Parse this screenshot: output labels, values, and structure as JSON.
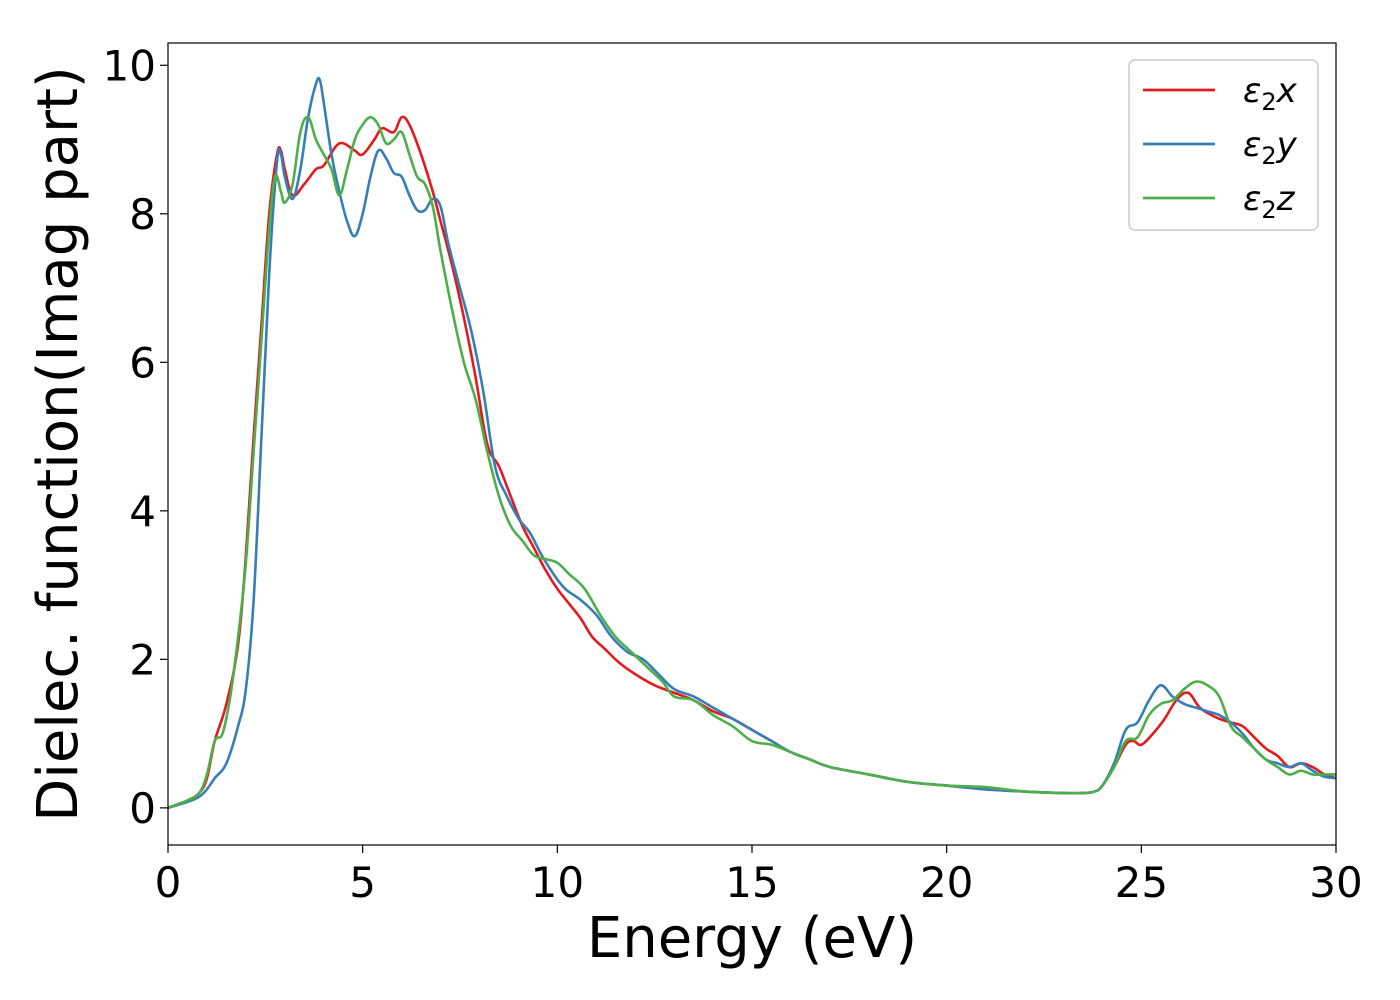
{
  "chart_data": {
    "type": "line",
    "title": "",
    "xlabel": "Energy (eV)",
    "ylabel": "Dielec. function(Imag part)",
    "xlim": [
      0,
      30
    ],
    "ylim": [
      -0.5,
      10.3
    ],
    "xticks": [
      0,
      5,
      10,
      15,
      20,
      25,
      30
    ],
    "yticks": [
      0,
      2,
      4,
      6,
      8,
      10
    ],
    "grid": false,
    "legend_position": "top-right",
    "series": [
      {
        "name": "ε2x",
        "legend_base": "ε",
        "legend_sub": "2",
        "legend_suffix": "x",
        "color": "#e41a1c",
        "x": [
          0,
          0.5,
          0.8,
          1.0,
          1.2,
          1.5,
          1.8,
          2.0,
          2.2,
          2.4,
          2.6,
          2.8,
          2.9,
          3.0,
          3.2,
          3.5,
          3.8,
          4.0,
          4.3,
          4.5,
          4.8,
          5.0,
          5.3,
          5.5,
          5.8,
          6.0,
          6.2,
          6.5,
          6.8,
          7.0,
          7.3,
          7.6,
          7.9,
          8.2,
          8.5,
          8.8,
          9.1,
          9.4,
          9.7,
          10.0,
          10.3,
          10.6,
          10.9,
          11.2,
          11.6,
          12.0,
          12.5,
          13.0,
          13.5,
          14.0,
          14.5,
          15.0,
          15.5,
          16.0,
          16.5,
          17.0,
          18.0,
          19.0,
          20.0,
          21.0,
          22.0,
          23.0,
          23.5,
          23.8,
          24.0,
          24.3,
          24.6,
          24.8,
          25.0,
          25.3,
          25.6,
          25.9,
          26.2,
          26.5,
          26.8,
          27.0,
          27.3,
          27.6,
          27.9,
          28.2,
          28.5,
          28.8,
          29.1,
          29.4,
          29.7,
          30.0
        ],
        "values": [
          0.0,
          0.1,
          0.2,
          0.4,
          0.9,
          1.4,
          2.2,
          3.4,
          5.0,
          6.5,
          8.0,
          8.8,
          8.85,
          8.6,
          8.25,
          8.4,
          8.6,
          8.65,
          8.9,
          8.95,
          8.85,
          8.8,
          9.0,
          9.15,
          9.1,
          9.3,
          9.2,
          8.8,
          8.3,
          7.9,
          7.3,
          6.6,
          5.8,
          4.9,
          4.6,
          4.2,
          3.8,
          3.5,
          3.2,
          2.95,
          2.75,
          2.55,
          2.3,
          2.15,
          1.95,
          1.8,
          1.65,
          1.55,
          1.45,
          1.3,
          1.2,
          1.05,
          0.9,
          0.75,
          0.65,
          0.55,
          0.45,
          0.35,
          0.3,
          0.25,
          0.22,
          0.2,
          0.2,
          0.22,
          0.3,
          0.55,
          0.85,
          0.9,
          0.85,
          1.0,
          1.2,
          1.45,
          1.55,
          1.35,
          1.25,
          1.2,
          1.15,
          1.1,
          0.95,
          0.8,
          0.7,
          0.55,
          0.6,
          0.55,
          0.45,
          0.4
        ]
      },
      {
        "name": "ε2y",
        "legend_base": "ε",
        "legend_sub": "2",
        "legend_suffix": "y",
        "color": "#377eb8",
        "x": [
          0,
          0.5,
          0.8,
          1.0,
          1.2,
          1.5,
          1.8,
          2.0,
          2.2,
          2.4,
          2.6,
          2.8,
          2.9,
          3.0,
          3.2,
          3.4,
          3.6,
          3.8,
          3.9,
          4.0,
          4.2,
          4.4,
          4.6,
          4.8,
          5.0,
          5.2,
          5.4,
          5.6,
          5.8,
          6.0,
          6.2,
          6.4,
          6.6,
          6.8,
          7.0,
          7.2,
          7.5,
          7.8,
          8.1,
          8.4,
          8.7,
          9.0,
          9.3,
          9.6,
          9.9,
          10.2,
          10.6,
          11.0,
          11.4,
          11.8,
          12.2,
          12.6,
          13.0,
          13.5,
          14.0,
          14.5,
          15.0,
          15.5,
          16.0,
          16.5,
          17.0,
          18.0,
          19.0,
          20.0,
          21.0,
          22.0,
          23.0,
          23.5,
          23.8,
          24.0,
          24.3,
          24.6,
          24.9,
          25.2,
          25.5,
          25.8,
          26.1,
          26.4,
          26.7,
          27.0,
          27.3,
          27.6,
          27.9,
          28.2,
          28.5,
          28.8,
          29.1,
          29.4,
          29.7,
          30.0
        ],
        "values": [
          0.0,
          0.08,
          0.15,
          0.25,
          0.4,
          0.6,
          1.1,
          1.6,
          2.8,
          5.0,
          7.2,
          8.7,
          8.8,
          8.5,
          8.2,
          8.6,
          9.3,
          9.75,
          9.8,
          9.5,
          8.8,
          8.3,
          7.9,
          7.7,
          8.0,
          8.5,
          8.85,
          8.75,
          8.55,
          8.5,
          8.25,
          8.05,
          8.05,
          8.2,
          8.1,
          7.6,
          7.0,
          6.4,
          5.6,
          4.6,
          4.2,
          3.9,
          3.7,
          3.4,
          3.15,
          2.95,
          2.8,
          2.6,
          2.3,
          2.1,
          2.0,
          1.8,
          1.6,
          1.5,
          1.35,
          1.2,
          1.05,
          0.9,
          0.75,
          0.65,
          0.55,
          0.45,
          0.35,
          0.3,
          0.25,
          0.22,
          0.2,
          0.2,
          0.22,
          0.3,
          0.6,
          1.05,
          1.15,
          1.45,
          1.65,
          1.5,
          1.4,
          1.35,
          1.3,
          1.25,
          1.15,
          1.0,
          0.8,
          0.65,
          0.6,
          0.55,
          0.6,
          0.5,
          0.42,
          0.4
        ]
      },
      {
        "name": "ε2z",
        "legend_base": "ε",
        "legend_sub": "2",
        "legend_suffix": "z",
        "color": "#4daf4a",
        "x": [
          0,
          0.5,
          0.8,
          1.0,
          1.2,
          1.4,
          1.6,
          1.8,
          2.0,
          2.2,
          2.4,
          2.6,
          2.75,
          2.9,
          3.0,
          3.2,
          3.4,
          3.6,
          3.8,
          4.0,
          4.2,
          4.4,
          4.6,
          4.8,
          5.0,
          5.2,
          5.4,
          5.6,
          5.8,
          6.0,
          6.2,
          6.4,
          6.6,
          6.8,
          7.0,
          7.3,
          7.6,
          7.9,
          8.2,
          8.5,
          8.8,
          9.1,
          9.4,
          9.7,
          10.0,
          10.3,
          10.7,
          11.1,
          11.5,
          11.9,
          12.3,
          12.7,
          13.0,
          13.5,
          14.0,
          14.5,
          15.0,
          15.5,
          16.0,
          16.5,
          17.0,
          18.0,
          19.0,
          20.0,
          21.0,
          22.0,
          23.0,
          23.5,
          23.8,
          24.0,
          24.3,
          24.6,
          24.9,
          25.2,
          25.5,
          25.8,
          26.1,
          26.4,
          26.7,
          27.0,
          27.3,
          27.6,
          27.9,
          28.2,
          28.5,
          28.8,
          29.1,
          29.4,
          29.7,
          30.0
        ],
        "values": [
          0.0,
          0.1,
          0.2,
          0.45,
          0.9,
          1.0,
          1.5,
          2.3,
          3.3,
          4.8,
          6.3,
          7.8,
          8.5,
          8.3,
          8.15,
          8.4,
          9.1,
          9.3,
          9.0,
          8.8,
          8.6,
          8.25,
          8.6,
          9.0,
          9.2,
          9.3,
          9.2,
          8.95,
          9.0,
          9.1,
          8.8,
          8.5,
          8.4,
          8.1,
          7.5,
          6.7,
          6.0,
          5.5,
          4.8,
          4.2,
          3.8,
          3.6,
          3.4,
          3.35,
          3.3,
          3.15,
          2.95,
          2.6,
          2.3,
          2.1,
          1.9,
          1.7,
          1.5,
          1.45,
          1.25,
          1.1,
          0.9,
          0.85,
          0.75,
          0.65,
          0.55,
          0.45,
          0.35,
          0.3,
          0.28,
          0.22,
          0.2,
          0.2,
          0.22,
          0.3,
          0.55,
          0.9,
          0.95,
          1.25,
          1.4,
          1.45,
          1.6,
          1.7,
          1.65,
          1.5,
          1.1,
          0.95,
          0.8,
          0.65,
          0.55,
          0.45,
          0.5,
          0.45,
          0.45,
          0.45
        ]
      }
    ]
  }
}
